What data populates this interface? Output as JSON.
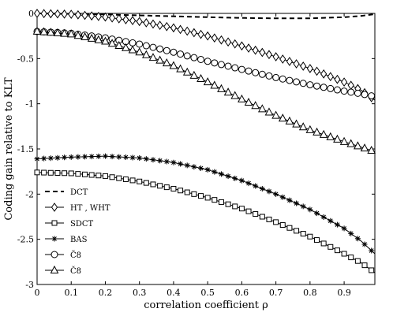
{
  "chart_data": {
    "type": "line",
    "title": "",
    "xlabel": "correlation coefficient ρ",
    "ylabel": "Coding gain relative to KLT",
    "xlim": [
      0,
      0.99
    ],
    "ylim": [
      -3,
      0
    ],
    "xticks": [
      0,
      0.1,
      0.2,
      0.3,
      0.4,
      0.5,
      0.6,
      0.7,
      0.8,
      0.9
    ],
    "xtick_labels": [
      "0",
      "0.1",
      "0.2",
      "0.3",
      "0.4",
      "0.5",
      "0.6",
      "0.7",
      "0.8",
      "0.9"
    ],
    "yticks": [
      0,
      -0.5,
      -1,
      -1.5,
      -2,
      -2.5,
      -3
    ],
    "ytick_labels": [
      "0",
      "-0.5",
      "-1",
      "-1.5",
      "-2",
      "-2.5",
      "-3"
    ],
    "grid": false,
    "legend_position": "bottom-left",
    "series": [
      {
        "name": "DCT",
        "marker": "none",
        "dash": "dashed",
        "x": [
          0,
          0.1,
          0.2,
          0.3,
          0.4,
          0.5,
          0.6,
          0.7,
          0.8,
          0.9,
          0.95,
          0.99
        ],
        "y": [
          0,
          -0.004,
          -0.012,
          -0.022,
          -0.032,
          -0.042,
          -0.05,
          -0.055,
          -0.054,
          -0.042,
          -0.028,
          -0.008
        ]
      },
      {
        "name": "HT , WHT",
        "marker": "diamond",
        "dash": "solid",
        "x": [
          0,
          0.1,
          0.2,
          0.3,
          0.4,
          0.5,
          0.6,
          0.7,
          0.8,
          0.9,
          0.95,
          0.99
        ],
        "y": [
          0,
          -0.01,
          -0.04,
          -0.09,
          -0.16,
          -0.25,
          -0.36,
          -0.48,
          -0.61,
          -0.76,
          -0.85,
          -0.96
        ]
      },
      {
        "name": "SDCT",
        "marker": "square",
        "dash": "solid",
        "x": [
          0,
          0.1,
          0.2,
          0.3,
          0.4,
          0.5,
          0.6,
          0.7,
          0.8,
          0.9,
          0.95,
          0.99
        ],
        "y": [
          -1.76,
          -1.77,
          -1.8,
          -1.86,
          -1.94,
          -2.04,
          -2.16,
          -2.31,
          -2.47,
          -2.66,
          -2.76,
          -2.87
        ]
      },
      {
        "name": "BAS",
        "marker": "star",
        "dash": "solid",
        "x": [
          0,
          0.1,
          0.2,
          0.3,
          0.4,
          0.5,
          0.6,
          0.7,
          0.8,
          0.9,
          0.95,
          0.99
        ],
        "y": [
          -1.61,
          -1.59,
          -1.58,
          -1.6,
          -1.65,
          -1.73,
          -1.85,
          -2.0,
          -2.17,
          -2.38,
          -2.52,
          -2.66
        ]
      },
      {
        "name": "C̃8",
        "marker": "circle",
        "dash": "solid",
        "x": [
          0,
          0.1,
          0.2,
          0.3,
          0.4,
          0.5,
          0.6,
          0.7,
          0.8,
          0.9,
          0.95,
          0.99
        ],
        "y": [
          -0.2,
          -0.22,
          -0.27,
          -0.34,
          -0.43,
          -0.53,
          -0.62,
          -0.71,
          -0.79,
          -0.86,
          -0.89,
          -0.92
        ]
      },
      {
        "name": "C̆8",
        "marker": "triangle",
        "dash": "solid",
        "x": [
          0,
          0.1,
          0.2,
          0.3,
          0.4,
          0.5,
          0.6,
          0.7,
          0.8,
          0.9,
          0.95,
          0.99
        ],
        "y": [
          -0.2,
          -0.23,
          -0.31,
          -0.43,
          -0.58,
          -0.76,
          -0.95,
          -1.13,
          -1.29,
          -1.42,
          -1.48,
          -1.53
        ]
      }
    ]
  }
}
